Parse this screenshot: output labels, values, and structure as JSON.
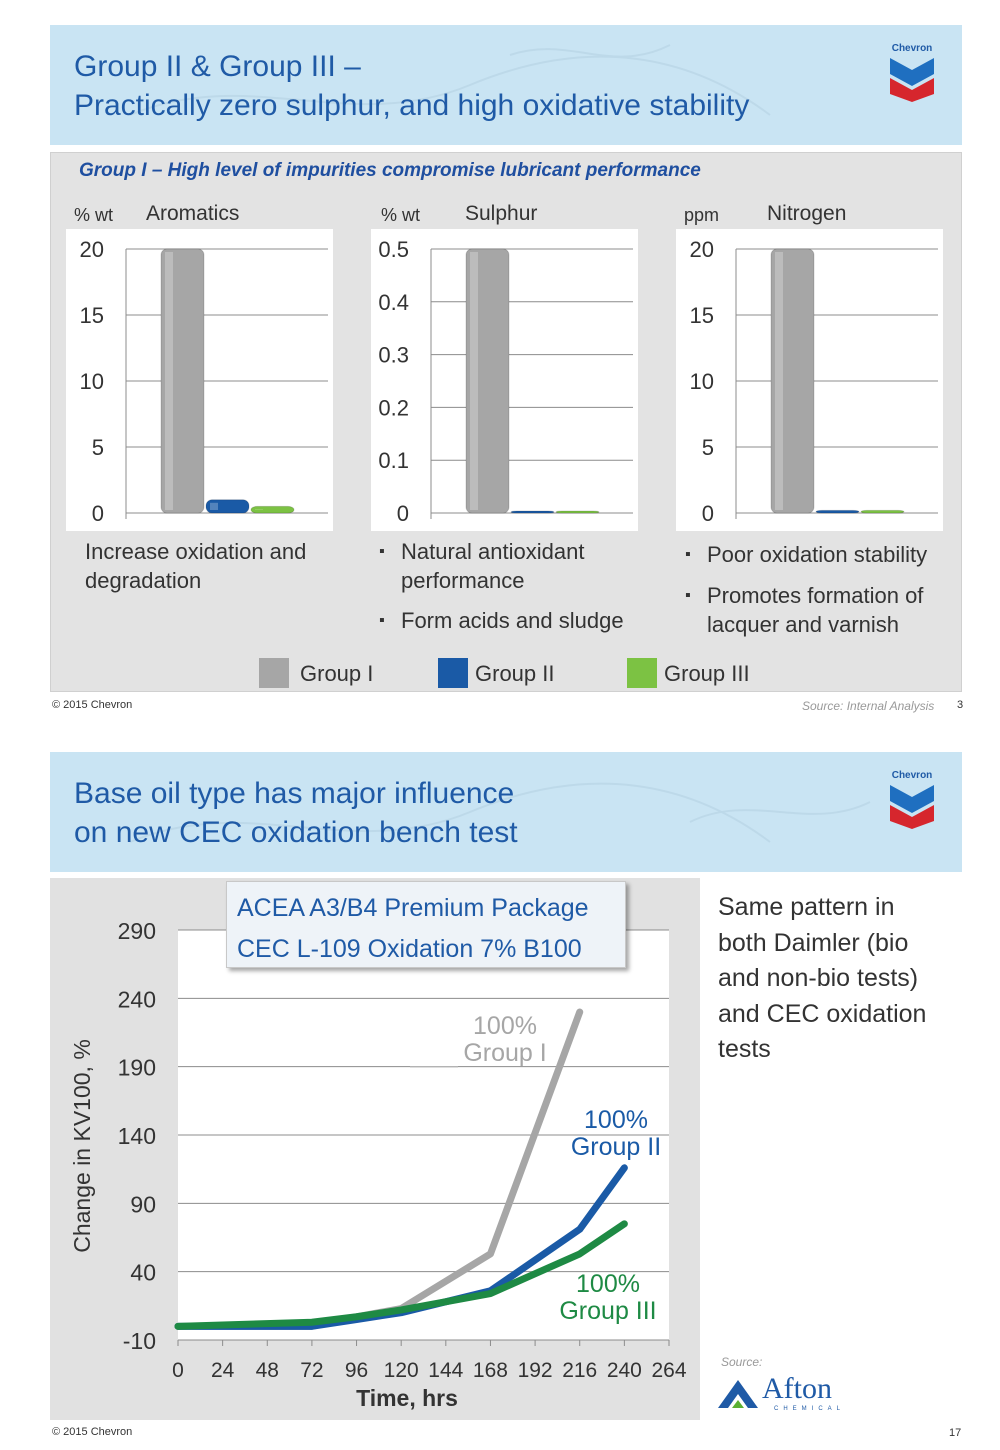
{
  "slide1": {
    "title_line1": "Group II & Group III –",
    "title_line2": "Practically zero sulphur, and high oxidative stability",
    "logo_text": "Chevron",
    "subtitle": "Group I – High level of impurities compromise lubricant performance",
    "charts": {
      "aromatics": {
        "unit": "% wt",
        "name": "Aromatics"
      },
      "sulphur": {
        "unit": "% wt",
        "name": "Sulphur"
      },
      "nitrogen": {
        "unit": "ppm",
        "name": "Nitrogen"
      }
    },
    "desc_aromatics_1": "Increase oxidation and",
    "desc_aromatics_2": "degradation",
    "bullets_sulphur": [
      "Natural antioxidant",
      "performance",
      "Form acids and sludge"
    ],
    "bullets_nitrogen": [
      "Poor oxidation stability",
      "Promotes formation of",
      "lacquer and varnish"
    ],
    "legend": [
      "Group I",
      "Group II",
      "Group III"
    ],
    "footer": "© 2015 Chevron",
    "source": "Source: Internal Analysis",
    "page": "3"
  },
  "slide2": {
    "title_line1": "Base oil type has major influence",
    "title_line2": "on new CEC oxidation bench test",
    "logo_text": "Chevron",
    "box_line1": "ACEA A3/B4 Premium Package",
    "box_line2": "CEC L-109 Oxidation 7% B100",
    "side_text": [
      "Same pattern in",
      "both Daimler (bio",
      "and non-bio tests)",
      "and CEC oxidation",
      "tests"
    ],
    "source_label": "Source:",
    "afton_name": "Afton",
    "afton_sub": "CHEMICAL",
    "footer": "© 2015 Chevron",
    "page": "17"
  },
  "colors": {
    "group1": "#a6a6a6",
    "group2": "#1a5aa6",
    "group3": "#7cc243",
    "group3_line": "#1e8a44",
    "title_blue": "#1f5aa6",
    "banner": "#c9e4f3"
  },
  "chart_data": [
    {
      "type": "bar",
      "unit": "% wt",
      "title": "Aromatics",
      "categories": [
        "Group I",
        "Group II",
        "Group III"
      ],
      "values": [
        20,
        1,
        0.5
      ],
      "ylim": [
        0,
        20
      ],
      "yticks": [
        0,
        5,
        10,
        15,
        20
      ],
      "ytick_labels": [
        "0",
        "5",
        "10",
        "15",
        "20"
      ],
      "grid": true
    },
    {
      "type": "bar",
      "unit": "% wt",
      "title": "Sulphur",
      "categories": [
        "Group I",
        "Group II",
        "Group III"
      ],
      "values": [
        0.5,
        0.003,
        0.003
      ],
      "ylim": [
        0,
        0.5
      ],
      "yticks": [
        0,
        0.1,
        0.2,
        0.3,
        0.4,
        0.5
      ],
      "ytick_labels": [
        "0",
        "0.1",
        "0.2",
        "0.3",
        "0.4",
        "0.5"
      ],
      "grid": true
    },
    {
      "type": "bar",
      "unit": "ppm",
      "title": "Nitrogen",
      "categories": [
        "Group I",
        "Group II",
        "Group III"
      ],
      "values": [
        20,
        0.2,
        0.2
      ],
      "ylim": [
        0,
        20
      ],
      "yticks": [
        0,
        5,
        10,
        15,
        20
      ],
      "ytick_labels": [
        "0",
        "5",
        "10",
        "15",
        "20"
      ],
      "grid": true
    },
    {
      "type": "line",
      "xlabel": "Time, hrs",
      "ylabel": "Change in KV100, %",
      "x": [
        0,
        72,
        120,
        168,
        216,
        240
      ],
      "xlim": [
        0,
        264
      ],
      "ylim": [
        -10,
        290
      ],
      "xticks": [
        0,
        24,
        48,
        72,
        96,
        120,
        144,
        168,
        192,
        216,
        240,
        264
      ],
      "yticks": [
        -10,
        40,
        90,
        140,
        190,
        240,
        290
      ],
      "grid": true,
      "series": [
        {
          "name_pct": "100%",
          "name_group": "Group I",
          "color": "#a6a6a6",
          "x": [
            0,
            72,
            96,
            120,
            168,
            216
          ],
          "values": [
            0,
            0,
            7,
            13,
            53,
            230
          ]
        },
        {
          "name_pct": "100%",
          "name_group": "Group II",
          "color": "#1a5aa6",
          "x": [
            0,
            72,
            96,
            120,
            168,
            216,
            240
          ],
          "values": [
            0,
            0,
            5,
            10,
            26,
            71,
            116
          ]
        },
        {
          "name_pct": "100%",
          "name_group": "Group III",
          "color": "#1e8a44",
          "x": [
            0,
            72,
            96,
            120,
            168,
            216,
            240
          ],
          "values": [
            0,
            3,
            7,
            12,
            24,
            53,
            75
          ]
        }
      ]
    }
  ]
}
